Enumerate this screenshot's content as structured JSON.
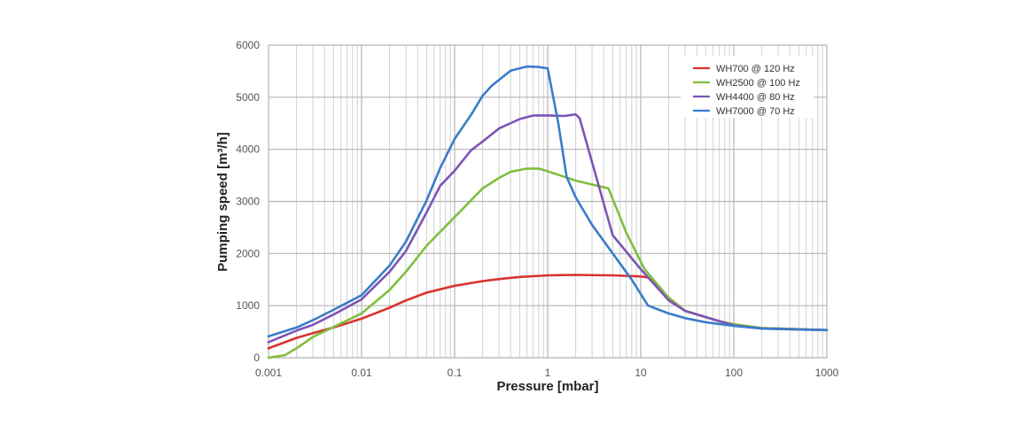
{
  "chart_data": {
    "type": "line",
    "xlabel": "Pressure   [mbar]",
    "ylabel": "Pumping speed   [m³/h]",
    "xscale": "log",
    "xlim": [
      0.001,
      1000
    ],
    "ylim": [
      0,
      6000
    ],
    "grid": true,
    "legend_position": "top-right",
    "x_tick_labels": [
      "0.001",
      "0.01",
      "0.1",
      "1",
      "10",
      "100",
      "1000"
    ],
    "y_tick_labels": [
      "0",
      "1000",
      "2000",
      "3000",
      "4000",
      "5000",
      "6000"
    ],
    "series": [
      {
        "name": "WH700 @ 120 Hz",
        "color": "#d9332f",
        "x": [
          0.001,
          0.002,
          0.003,
          0.005,
          0.01,
          0.02,
          0.03,
          0.05,
          0.1,
          0.2,
          0.3,
          0.5,
          1,
          2,
          5,
          10,
          12,
          20,
          30,
          70,
          100,
          200,
          1000
        ],
        "y": [
          180,
          380,
          470,
          580,
          750,
          960,
          1100,
          1250,
          1380,
          1470,
          1510,
          1550,
          1580,
          1590,
          1580,
          1560,
          1540,
          1150,
          900,
          700,
          640,
          570,
          530
        ]
      },
      {
        "name": "WH2500 @ 100 Hz",
        "color": "#7fbf3f",
        "x": [
          0.001,
          0.0015,
          0.002,
          0.003,
          0.005,
          0.01,
          0.02,
          0.03,
          0.05,
          0.1,
          0.2,
          0.3,
          0.4,
          0.6,
          0.8,
          1,
          2,
          4.5,
          7,
          11,
          20,
          30,
          70,
          100,
          200,
          1000
        ],
        "y": [
          0,
          50,
          180,
          400,
          590,
          850,
          1300,
          1650,
          2150,
          2700,
          3250,
          3450,
          3570,
          3630,
          3630,
          3580,
          3400,
          3250,
          2400,
          1700,
          1150,
          900,
          700,
          640,
          570,
          530
        ]
      },
      {
        "name": "WH4400 @ 80 Hz",
        "color": "#7d55b5",
        "x": [
          0.001,
          0.002,
          0.003,
          0.005,
          0.01,
          0.02,
          0.03,
          0.05,
          0.07,
          0.1,
          0.15,
          0.2,
          0.3,
          0.5,
          0.7,
          1,
          1.5,
          2,
          2.2,
          5,
          10,
          20,
          30,
          70,
          100,
          200,
          1000
        ],
        "y": [
          300,
          520,
          630,
          830,
          1120,
          1650,
          2050,
          2790,
          3300,
          3590,
          3980,
          4150,
          4400,
          4580,
          4650,
          4650,
          4640,
          4670,
          4600,
          2350,
          1700,
          1100,
          900,
          700,
          620,
          560,
          530
        ]
      },
      {
        "name": "WH7000 @ 70 Hz",
        "color": "#3a7cc9",
        "x": [
          0.001,
          0.002,
          0.003,
          0.005,
          0.01,
          0.02,
          0.03,
          0.05,
          0.07,
          0.1,
          0.15,
          0.2,
          0.25,
          0.4,
          0.6,
          0.8,
          1,
          1.3,
          1.6,
          2,
          3,
          5,
          8,
          12,
          20,
          30,
          50,
          100,
          200,
          1000
        ],
        "y": [
          410,
          580,
          720,
          920,
          1200,
          1770,
          2230,
          3020,
          3640,
          4200,
          4660,
          5030,
          5220,
          5510,
          5590,
          5580,
          5555,
          4500,
          3470,
          3080,
          2550,
          2000,
          1500,
          1000,
          850,
          760,
          680,
          610,
          560,
          530
        ]
      }
    ]
  }
}
